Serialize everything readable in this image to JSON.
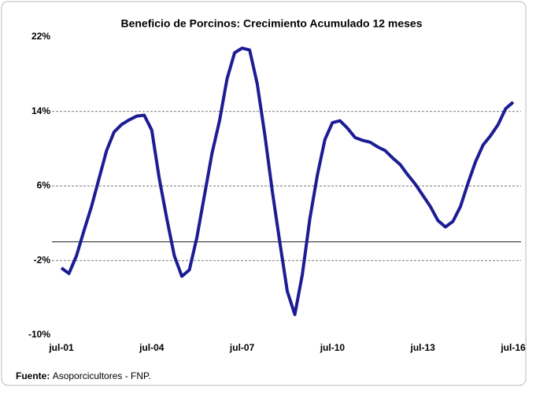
{
  "chart_data": {
    "type": "line",
    "title": "Beneficio de Porcinos: Crecimiento Acumulado 12 meses",
    "categories": [
      "jul-01",
      null,
      null,
      null,
      null,
      null,
      null,
      null,
      null,
      null,
      null,
      null,
      "jul-04",
      null,
      null,
      null,
      null,
      null,
      null,
      null,
      null,
      null,
      null,
      null,
      "jul-07",
      null,
      null,
      null,
      null,
      null,
      null,
      null,
      null,
      null,
      null,
      null,
      "jul-10",
      null,
      null,
      null,
      null,
      null,
      null,
      null,
      null,
      null,
      null,
      null,
      "jul-13",
      null,
      null,
      null,
      null,
      null,
      null,
      null,
      null,
      null,
      null,
      null,
      "jul-16"
    ],
    "values": [
      -2.8,
      -3.4,
      -1.5,
      1.2,
      3.8,
      6.8,
      9.8,
      11.8,
      12.6,
      13.1,
      13.5,
      13.6,
      12.0,
      6.8,
      2.5,
      -1.5,
      -3.7,
      -3.0,
      0.5,
      5.0,
      9.5,
      13.0,
      17.5,
      20.3,
      20.8,
      20.6,
      17.0,
      11.6,
      5.5,
      0,
      -5.3,
      -7.8,
      -3.5,
      2.5,
      7.2,
      11.0,
      12.8,
      13.0,
      12.2,
      11.2,
      10.9,
      10.7,
      10.2,
      9.8,
      9.0,
      8.3,
      7.2,
      6.2,
      5.0,
      3.8,
      2.3,
      1.6,
      2.2,
      3.8,
      6.3,
      8.6,
      10.4,
      11.4,
      12.6,
      14.3,
      15.0
    ],
    "color": "#1c1c94",
    "ylim": [
      -10,
      22
    ],
    "yticks": [
      {
        "value": -10,
        "label": "-10%"
      },
      {
        "value": -2,
        "label": "-2%"
      },
      {
        "value": 6,
        "label": "6%"
      },
      {
        "value": 14,
        "label": "14%"
      },
      {
        "value": 22,
        "label": "22%"
      }
    ],
    "grid": true,
    "source_label": "Fuente:",
    "source_text": "Asoporcicultores - FNP."
  }
}
